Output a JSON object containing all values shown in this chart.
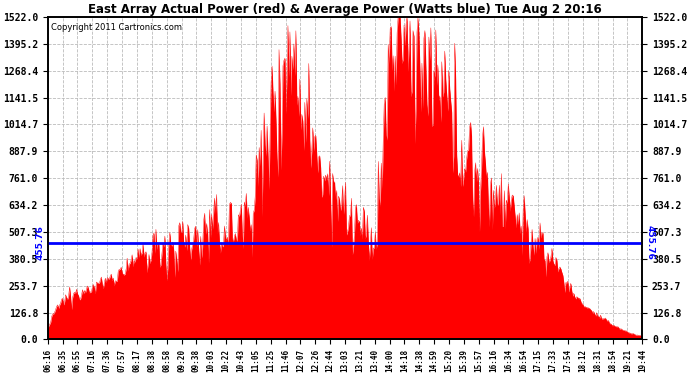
{
  "title": "East Array Actual Power (red) & Average Power (Watts blue) Tue Aug 2 20:16",
  "copyright": "Copyright 2011 Cartronics.com",
  "average_power": 455.76,
  "y_max": 1522.0,
  "y_min": 0.0,
  "yticks": [
    0.0,
    126.8,
    253.7,
    380.5,
    507.3,
    634.2,
    761.0,
    887.9,
    1014.7,
    1141.5,
    1268.4,
    1395.2,
    1522.0
  ],
  "fill_color": "#FF0000",
  "avg_line_color": "#0000FF",
  "background_color": "#FFFFFF",
  "grid_color": "#BBBBBB",
  "x_labels": [
    "06:16",
    "06:35",
    "06:55",
    "07:16",
    "07:36",
    "07:57",
    "08:17",
    "08:38",
    "08:58",
    "09:20",
    "09:38",
    "10:03",
    "10:22",
    "10:43",
    "11:05",
    "11:25",
    "11:46",
    "12:07",
    "12:26",
    "12:44",
    "13:03",
    "13:21",
    "13:40",
    "14:00",
    "14:18",
    "14:38",
    "14:59",
    "15:20",
    "15:39",
    "15:57",
    "16:16",
    "16:34",
    "16:54",
    "17:15",
    "17:33",
    "17:54",
    "18:12",
    "18:31",
    "18:54",
    "19:21",
    "19:44"
  ],
  "seed": 12345
}
